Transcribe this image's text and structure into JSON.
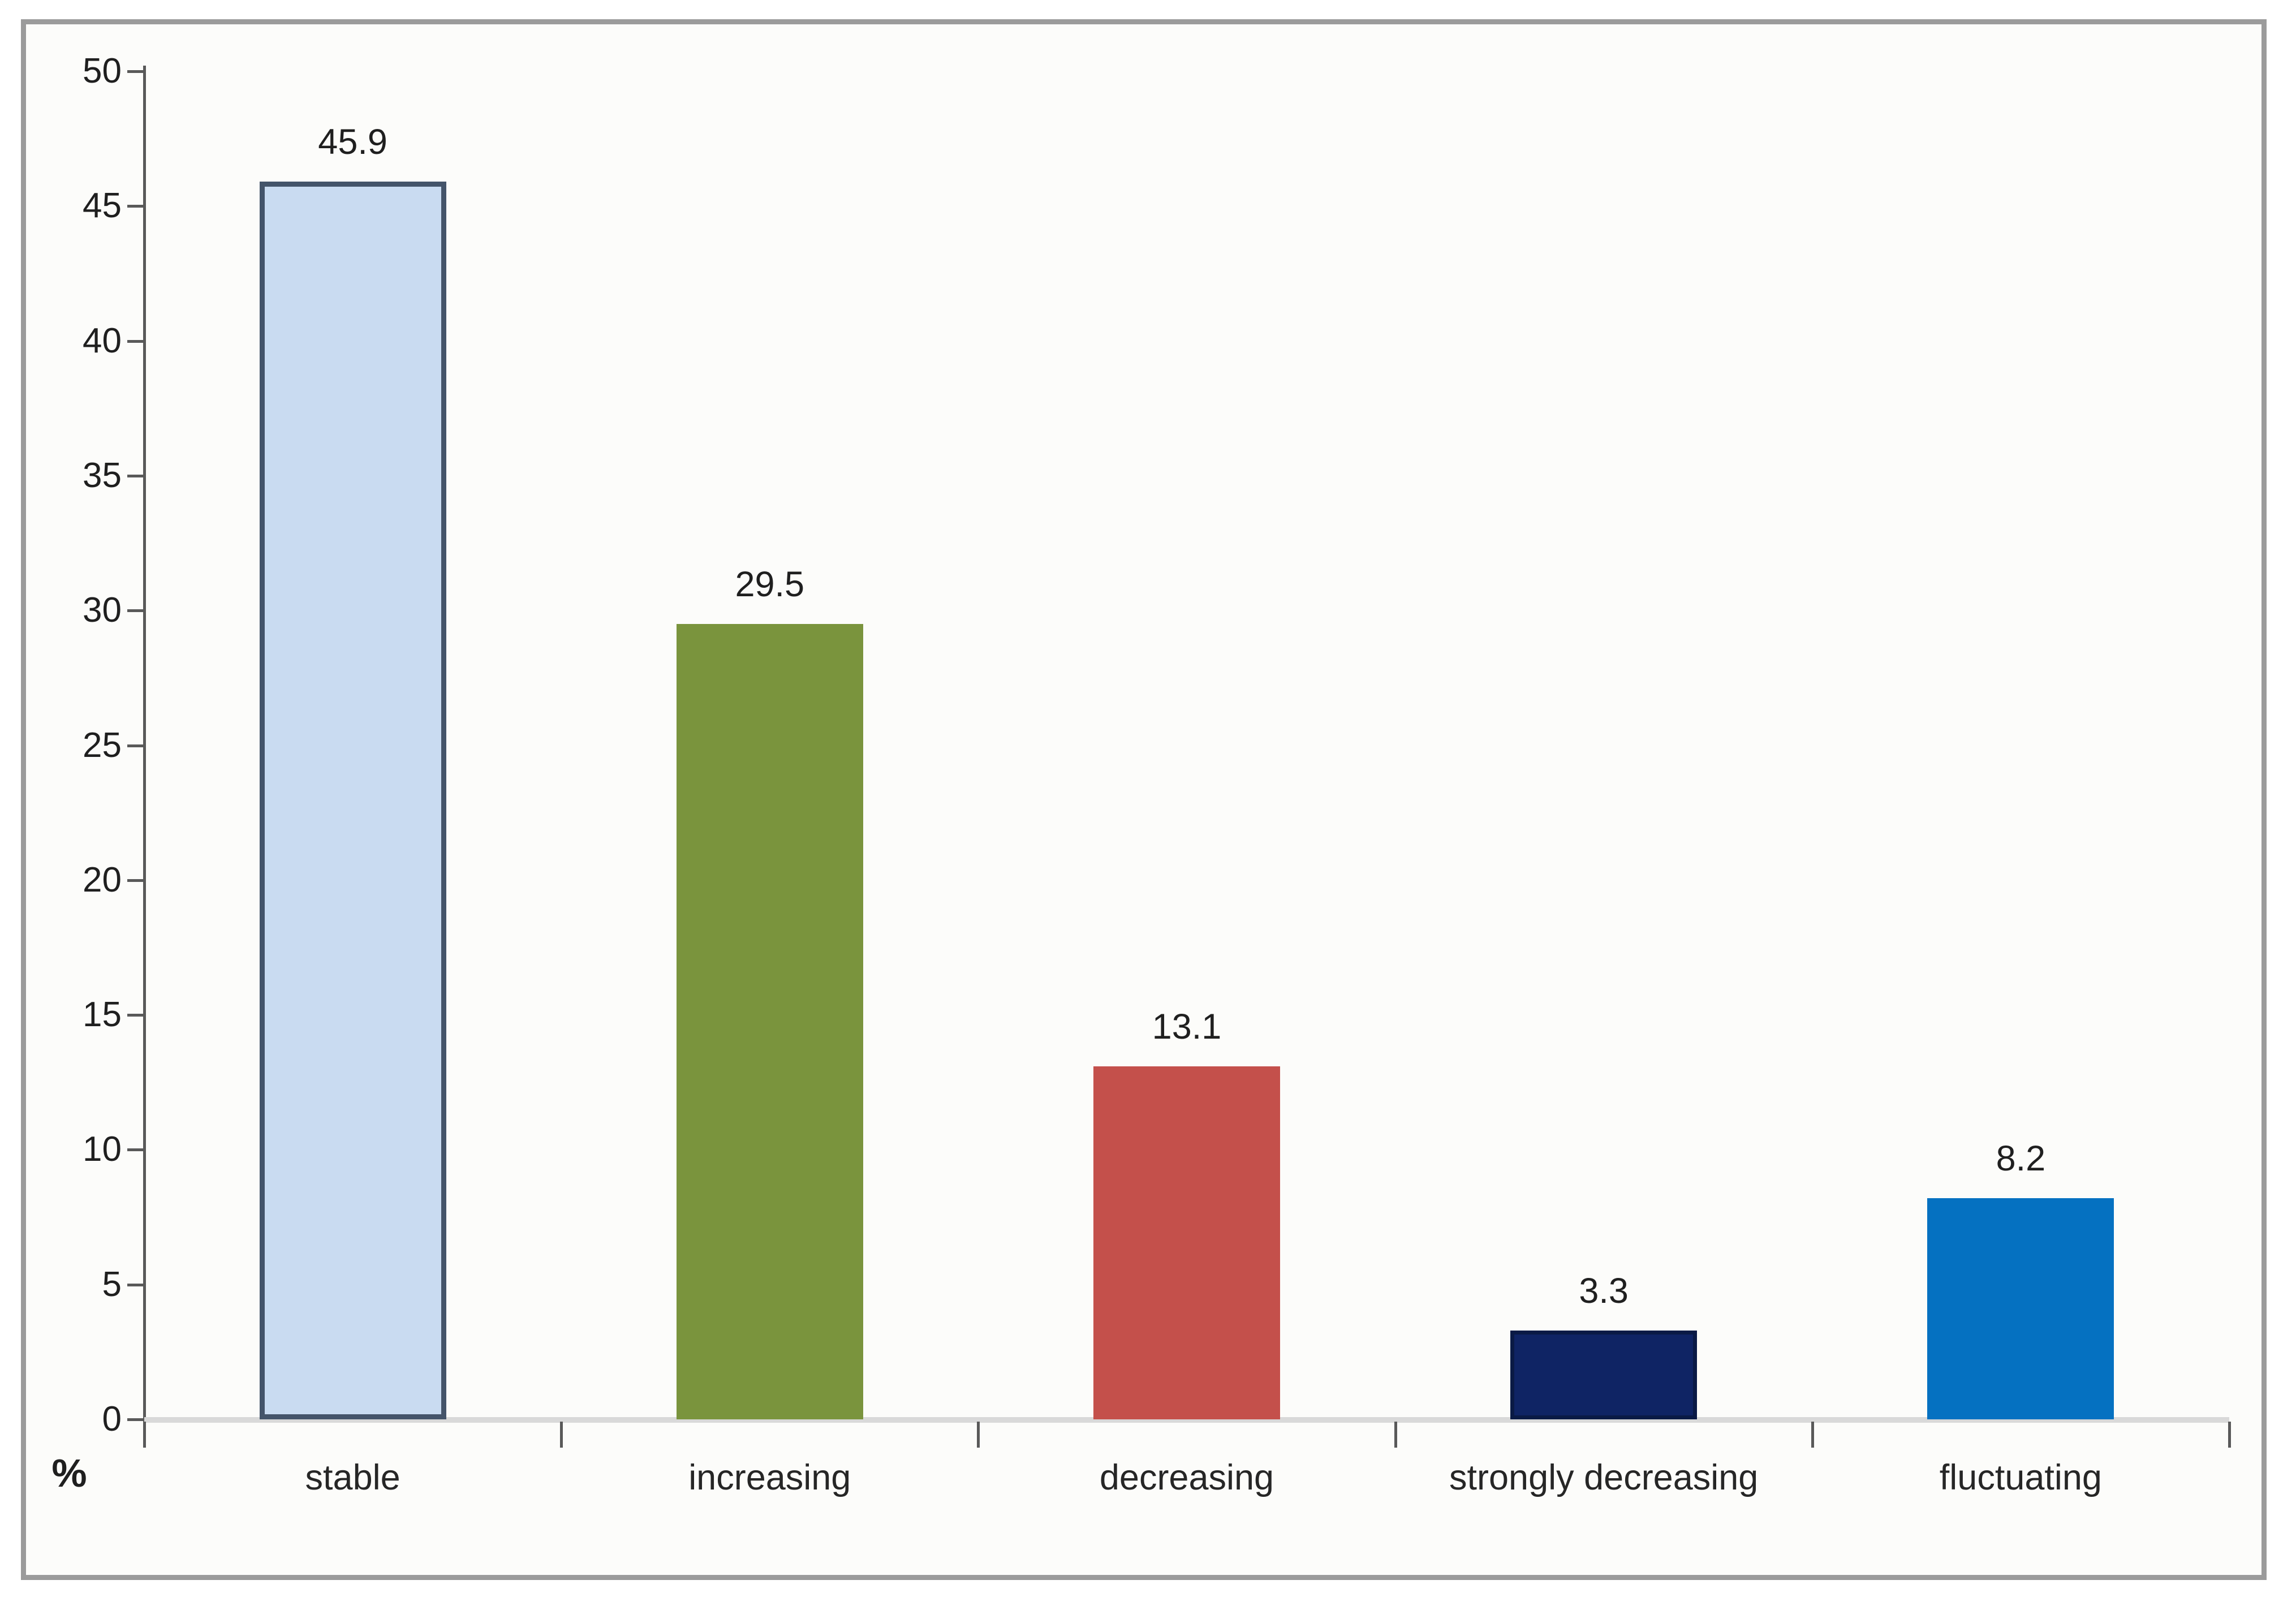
{
  "chart_data": {
    "type": "bar",
    "title": "",
    "categories": [
      "stable",
      "increasing",
      "decreasing",
      "strongly decreasing",
      "fluctuating"
    ],
    "values": [
      45.9,
      29.5,
      13.1,
      3.3,
      8.2
    ],
    "value_labels": [
      "45.9",
      "29.5",
      "13.1",
      "3.3",
      "8.2"
    ],
    "xlabel": "",
    "ylabel": "%",
    "ylim": [
      0,
      50
    ],
    "y_ticks": [
      0,
      5,
      10,
      15,
      20,
      25,
      30,
      35,
      40,
      45,
      50
    ],
    "grid": false,
    "legend": "none",
    "bar_styles": [
      {
        "name": "stable",
        "fill": "#C9DBF1",
        "border": "#44546A",
        "border_width": 9
      },
      {
        "name": "increasing",
        "fill": "#7A943D",
        "border": "none",
        "border_width": 0
      },
      {
        "name": "decreasing",
        "fill": "#C4504B",
        "border": "none",
        "border_width": 0
      },
      {
        "name": "strongly-decreasing",
        "fill": "#0F2464",
        "border": "#0A1A45",
        "border_width": 7
      },
      {
        "name": "fluctuating",
        "fill": "#0571C1",
        "border": "none",
        "border_width": 0
      }
    ]
  },
  "axis": {
    "percent_label": "%"
  },
  "colors": {
    "frame_border": "#9B9B9B",
    "chart_background": "#FCFCFA",
    "y_axis_line": "#595959",
    "x_axis_baseline": "#D9D9D9",
    "boundary_tick": "#595959",
    "text": "#1F1F1F"
  }
}
